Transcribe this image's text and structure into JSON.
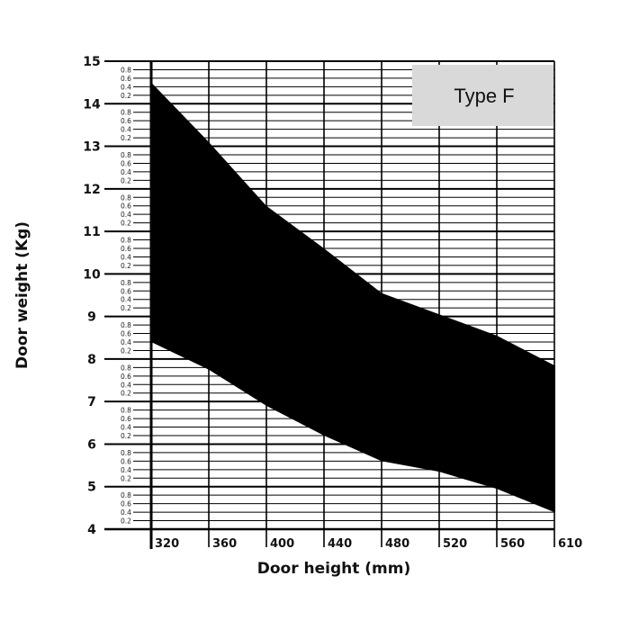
{
  "chart_data": {
    "type": "area",
    "title": "",
    "xlabel": "Door height (mm)",
    "ylabel": "Door weight (Kg)",
    "xlim": [
      315,
      610
    ],
    "ylim": [
      4,
      15
    ],
    "x_ticks": [
      {
        "value": 320,
        "label": "320"
      },
      {
        "value": 360,
        "label": "360"
      },
      {
        "value": 400,
        "label": "400"
      },
      {
        "value": 440,
        "label": "440"
      },
      {
        "value": 480,
        "label": "480"
      },
      {
        "value": 520,
        "label": "520"
      },
      {
        "value": 560,
        "label": "560"
      },
      {
        "value": 600,
        "label": ""
      },
      {
        "value": 610,
        "label": "610"
      }
    ],
    "y_major_ticks": [
      "4",
      "5",
      "6",
      "7",
      "8",
      "9",
      "10",
      "11",
      "12",
      "13",
      "14",
      "15"
    ],
    "y_minor_labels": [
      "0.2",
      "0.4",
      "0.6",
      "0.8"
    ],
    "series": [
      {
        "name": "Type F",
        "color": "#000000",
        "upper": [
          {
            "x": 320,
            "y": 14.5
          },
          {
            "x": 360,
            "y": 13.1
          },
          {
            "x": 400,
            "y": 11.6
          },
          {
            "x": 440,
            "y": 10.6
          },
          {
            "x": 480,
            "y": 9.55
          },
          {
            "x": 520,
            "y": 9.05
          },
          {
            "x": 560,
            "y": 8.55
          },
          {
            "x": 600,
            "y": 7.85
          }
        ],
        "lower": [
          {
            "x": 320,
            "y": 8.4
          },
          {
            "x": 360,
            "y": 7.75
          },
          {
            "x": 400,
            "y": 6.9
          },
          {
            "x": 440,
            "y": 6.2
          },
          {
            "x": 480,
            "y": 5.6
          },
          {
            "x": 520,
            "y": 5.35
          },
          {
            "x": 560,
            "y": 4.95
          },
          {
            "x": 600,
            "y": 4.4
          }
        ]
      }
    ],
    "legend": {
      "label": "Type F",
      "placement": "top-right",
      "background": "#d9d9d9"
    },
    "grid": true
  }
}
